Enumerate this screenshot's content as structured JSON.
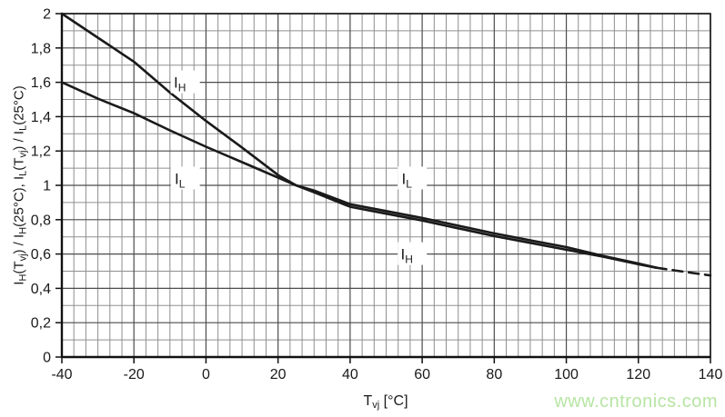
{
  "chart_data": {
    "type": "line",
    "title": "",
    "xlabel": "Tvj [°C]",
    "ylabel": "IH(Tvj) / IH(25°C), IL(Tvj) / IL(25°C)",
    "xlim": [
      -40,
      140
    ],
    "ylim": [
      0,
      2
    ],
    "x_major_step": 20,
    "x_minor_per_major": 6,
    "y_major_step": 0.2,
    "y_minor_step": 0.1,
    "grid": true,
    "legend_position": "none",
    "x_tick_values": [
      -40,
      -20,
      0,
      20,
      40,
      60,
      80,
      100,
      120,
      140
    ],
    "x_tick_labels": [
      "-40",
      "-20",
      "0",
      "20",
      "40",
      "60",
      "80",
      "100",
      "120",
      "140"
    ],
    "y_tick_values": [
      0,
      0.2,
      0.4,
      0.6,
      0.8,
      1,
      1.2,
      1.4,
      1.6,
      1.8,
      2
    ],
    "y_tick_labels": [
      "0",
      "0,2",
      "0,4",
      "0,6",
      "0,8",
      "1",
      "1,2",
      "1,4",
      "1,6",
      "1,8",
      "2"
    ],
    "series": [
      {
        "name": "I_H",
        "style": "solid",
        "x": [
          -40,
          -30,
          -20,
          -10,
          0,
          10,
          20,
          25,
          30,
          40,
          50,
          60,
          70,
          80,
          90,
          100,
          110,
          120,
          125
        ],
        "values": [
          2.0,
          1.86,
          1.72,
          1.54,
          1.375,
          1.22,
          1.06,
          1.0,
          0.96,
          0.875,
          0.835,
          0.795,
          0.75,
          0.705,
          0.665,
          0.625,
          0.585,
          0.54,
          0.52
        ]
      },
      {
        "name": "I_L",
        "style": "solid",
        "x": [
          -40,
          -30,
          -20,
          -10,
          0,
          10,
          20,
          25,
          30,
          40,
          50,
          60,
          70,
          80,
          90,
          100,
          110,
          120,
          125
        ],
        "values": [
          1.6,
          1.505,
          1.42,
          1.32,
          1.225,
          1.135,
          1.045,
          1.0,
          0.97,
          0.89,
          0.85,
          0.81,
          0.765,
          0.72,
          0.68,
          0.64,
          0.59,
          0.545,
          0.52
        ]
      },
      {
        "name": "extrapolated-merged",
        "style": "dashed",
        "x": [
          125,
          130,
          140
        ],
        "values": [
          0.52,
          0.505,
          0.475
        ]
      }
    ],
    "annotations": [
      {
        "text": "I",
        "sub": "H",
        "x": -6,
        "y": 1.6
      },
      {
        "text": "I",
        "sub": "L",
        "x": -6,
        "y": 1.04
      },
      {
        "text": "I",
        "sub": "L",
        "x": 57,
        "y": 1.04
      },
      {
        "text": "I",
        "sub": "H",
        "x": 57,
        "y": 0.6
      }
    ],
    "colors": {
      "curve": "#1a1a1a",
      "grid_minor": "#8f8f8f",
      "grid_major": "#4c4c4c",
      "axis": "#111111",
      "text": "#1a1a1a",
      "background": "#ffffff"
    }
  },
  "axis_titles": {
    "x_parts": [
      {
        "t": "T"
      },
      {
        "t": "vj",
        "sub": true
      },
      {
        "t": " [°C]"
      }
    ],
    "y_parts": [
      {
        "t": "I"
      },
      {
        "t": "H",
        "sub": true
      },
      {
        "t": "(T"
      },
      {
        "t": "vj",
        "sub": true
      },
      {
        "t": ") / I"
      },
      {
        "t": "H",
        "sub": true
      },
      {
        "t": "(25°C), I"
      },
      {
        "t": "L",
        "sub": true
      },
      {
        "t": "(T"
      },
      {
        "t": "vj",
        "sub": true
      },
      {
        "t": ") / I"
      },
      {
        "t": "L",
        "sub": true
      },
      {
        "t": "(25°C)"
      }
    ]
  },
  "watermark": {
    "text": "www.cntronics.com",
    "color": "#b6e5a3"
  }
}
